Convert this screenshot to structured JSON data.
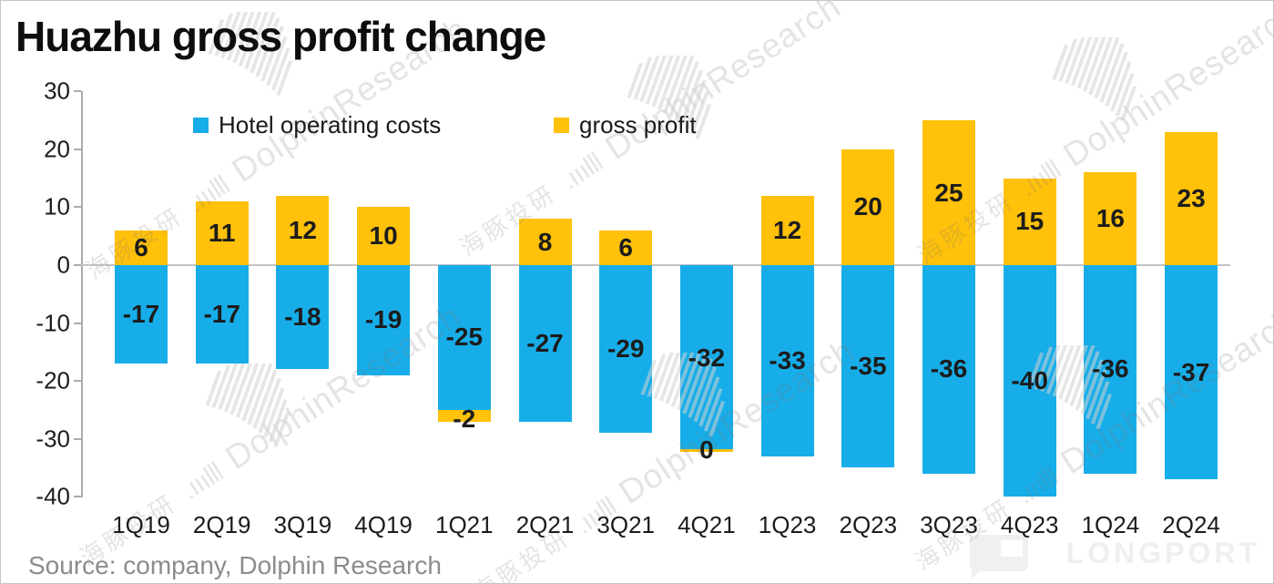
{
  "header": {
    "title": "Huazhu gross profit change"
  },
  "chart_data": {
    "type": "bar",
    "stacked": true,
    "title": "Huazhu gross profit change",
    "categories": [
      "1Q19",
      "2Q19",
      "3Q19",
      "4Q19",
      "1Q21",
      "2Q21",
      "3Q21",
      "4Q21",
      "1Q23",
      "2Q23",
      "3Q23",
      "4Q23",
      "1Q24",
      "2Q24"
    ],
    "series": [
      {
        "name": "Hotel operating costs",
        "color": "#17ADE9",
        "values": [
          -17,
          -17,
          -18,
          -19,
          -25,
          -27,
          -29,
          -32,
          -33,
          -35,
          -36,
          -40,
          -36,
          -37
        ]
      },
      {
        "name": "gross profit",
        "color": "#FFC10A",
        "values": [
          6,
          11,
          12,
          10,
          -2,
          8,
          6,
          0,
          12,
          20,
          25,
          15,
          16,
          23
        ]
      }
    ],
    "ylim": [
      -40,
      30
    ],
    "yticks": [
      30,
      20,
      10,
      0,
      -10,
      -20,
      -30,
      -40
    ],
    "grid": "zero-line-only",
    "legend_position": "top"
  },
  "legend": {
    "items": [
      {
        "label": "Hotel operating costs",
        "color": "#17ADE9"
      },
      {
        "label": "gross profit",
        "color": "#FFC10A"
      }
    ]
  },
  "watermark": {
    "english": "DolphinResearch",
    "chinese": "海豚投研"
  },
  "footer": {
    "source": "Source: company, Dolphin Research",
    "logo_text": "LONGPORT"
  },
  "colors": {
    "blue": "#17ADE9",
    "orange": "#FFC10A",
    "zero_line": "#C3C3C3",
    "axis": "#ABABAB",
    "label": "#1C1C1C",
    "source_text": "#8C8C8C"
  }
}
